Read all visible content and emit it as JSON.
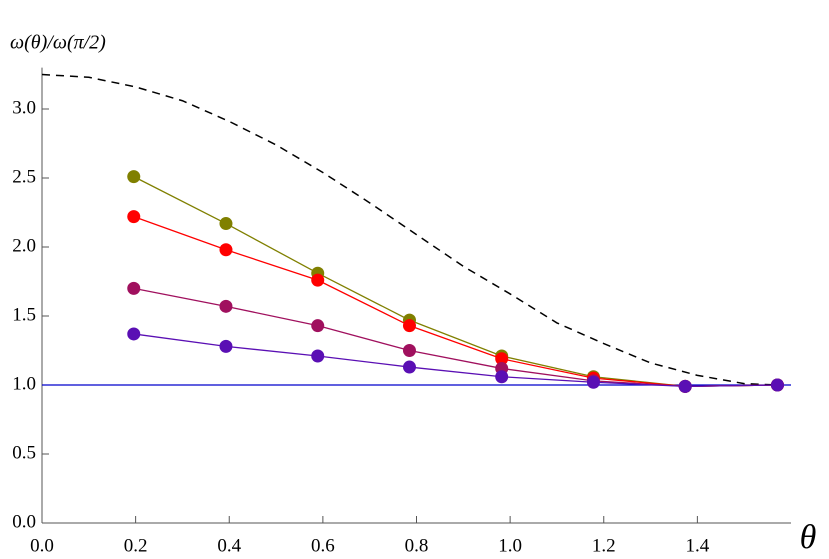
{
  "chart_data": {
    "type": "line",
    "x_label": "θ",
    "y_label": "ω(θ)/ω(π/2)",
    "xlim": [
      0,
      1.6
    ],
    "ylim": [
      0,
      3.3
    ],
    "xticks": [
      {
        "value": 0,
        "label": "0.0"
      },
      {
        "value": 0.2,
        "label": "0.2"
      },
      {
        "value": 0.4,
        "label": "0.4"
      },
      {
        "value": 0.6,
        "label": "0.6"
      },
      {
        "value": 0.8,
        "label": "0.8"
      },
      {
        "value": 1,
        "label": "1.0"
      },
      {
        "value": 1.2,
        "label": "1.2"
      },
      {
        "value": 1.4,
        "label": "1.4"
      }
    ],
    "yticks": [
      {
        "value": 0,
        "label": "0.0"
      },
      {
        "value": 0.5,
        "label": "0.5"
      },
      {
        "value": 1,
        "label": "1.0"
      },
      {
        "value": 1.5,
        "label": "1.5"
      },
      {
        "value": 2,
        "label": "2.0"
      },
      {
        "value": 2.5,
        "label": "2.5"
      },
      {
        "value": 3,
        "label": "3.0"
      }
    ],
    "series": [
      {
        "color": "#0000cc",
        "style": "solid",
        "markers": false,
        "x": [
          0,
          1.6
        ],
        "values": [
          1,
          1
        ]
      },
      {
        "color": "#000000",
        "style": "dashed",
        "markers": false,
        "x": [
          0,
          0.1,
          0.2,
          0.3,
          0.4,
          0.5,
          0.6,
          0.7,
          0.8,
          0.9,
          1.0,
          1.1,
          1.2,
          1.3,
          1.4,
          1.5,
          1.571
        ],
        "values": [
          3.25,
          3.23,
          3.16,
          3.06,
          2.91,
          2.74,
          2.54,
          2.32,
          2.09,
          1.86,
          1.66,
          1.45,
          1.3,
          1.16,
          1.07,
          1.01,
          1.0
        ]
      },
      {
        "color": "#808000",
        "style": "solid",
        "markers": true,
        "x": [
          0.196,
          0.393,
          0.589,
          0.785,
          0.982,
          1.178,
          1.374,
          1.571
        ],
        "values": [
          2.51,
          2.17,
          1.81,
          1.47,
          1.21,
          1.06,
          0.99,
          1.0
        ]
      },
      {
        "color": "#ff0000",
        "style": "solid",
        "markers": true,
        "x": [
          0.196,
          0.393,
          0.589,
          0.785,
          0.982,
          1.178,
          1.374,
          1.571
        ],
        "values": [
          2.22,
          1.98,
          1.76,
          1.43,
          1.19,
          1.05,
          0.99,
          1.0
        ]
      },
      {
        "color": "#a0105e",
        "style": "solid",
        "markers": true,
        "x": [
          0.196,
          0.393,
          0.589,
          0.785,
          0.982,
          1.178,
          1.374,
          1.571
        ],
        "values": [
          1.7,
          1.57,
          1.43,
          1.25,
          1.12,
          1.03,
          0.99,
          1.0
        ]
      },
      {
        "color": "#5a0fb4",
        "style": "solid",
        "markers": true,
        "x": [
          0.196,
          0.393,
          0.589,
          0.785,
          0.982,
          1.178,
          1.374,
          1.571
        ],
        "values": [
          1.37,
          1.28,
          1.21,
          1.13,
          1.06,
          1.02,
          0.99,
          1.0
        ]
      }
    ]
  }
}
